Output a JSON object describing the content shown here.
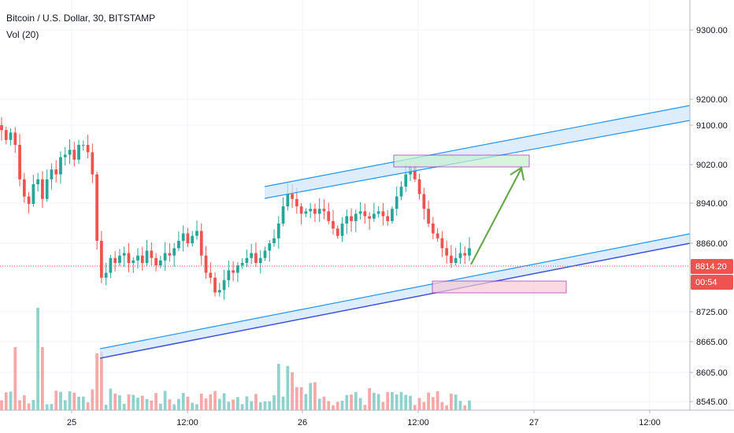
{
  "chart_data": {
    "type": "candlestick",
    "title": "Bitcoin / U.S. Dollar, 30, BITSTAMP",
    "indicator": "Vol (20)",
    "y_ticks": [
      "9300.00",
      "9200.00",
      "9100.00",
      "9020.00",
      "8940.00",
      "8860.00",
      "8725.00",
      "8665.00",
      "8605.00",
      "8545.00"
    ],
    "x_ticks": [
      "25",
      "12:00",
      "26",
      "12:00",
      "27",
      "12:00"
    ],
    "last_price": "8814.20",
    "countdown": "00:54",
    "colors": {
      "up": "#26a69a",
      "down": "#ef5350",
      "channel": "#2196f3",
      "arrow": "#6aa84f"
    }
  }
}
